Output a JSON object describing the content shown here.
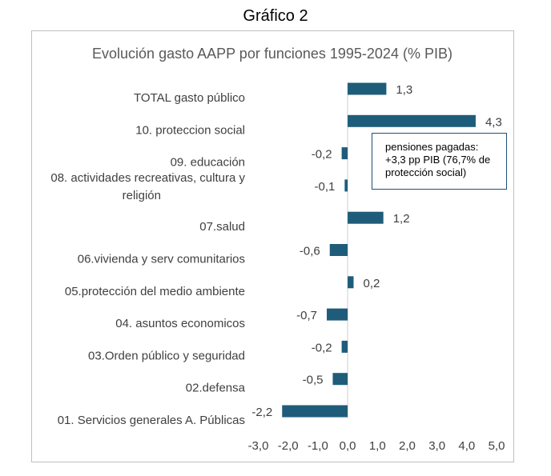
{
  "page_title": "Gráfico 2",
  "annotation": "pensiones pagadas: +3,3 pp PIB (76,7% de protección social)",
  "chart_data": {
    "type": "bar",
    "orientation": "horizontal",
    "title": "Evolución gasto AAPP por funciones 1995-2024 (% PIB)",
    "categories": [
      "TOTAL gasto público",
      "10. proteccion social",
      "09. educación",
      "08. actividades recreativas, cultura y religión",
      "07.salud",
      "06.vivienda y serv comunitarios",
      "05.protección del medio ambiente",
      "04. asuntos economicos",
      "03.Orden público y seguridad",
      "02.defensa",
      "01. Servicios generales A. Públicas"
    ],
    "values": [
      1.3,
      4.3,
      -0.2,
      -0.1,
      1.2,
      -0.6,
      0.2,
      -0.7,
      -0.2,
      -0.5,
      -2.2
    ],
    "value_labels": [
      "1,3",
      "4,3",
      "-0,2",
      "-0,1",
      "1,2",
      "-0,6",
      "0,2",
      "-0,7",
      "-0,2",
      "-0,5",
      "-2,2"
    ],
    "xlim": [
      -3.0,
      5.0
    ],
    "xticks": [
      "-3,0",
      "-2,0",
      "-1,0",
      "0,0",
      "1,0",
      "2,0",
      "3,0",
      "4,0",
      "5,0"
    ],
    "bar_color": "#1f5c7a",
    "grid": false,
    "legend": "none"
  }
}
